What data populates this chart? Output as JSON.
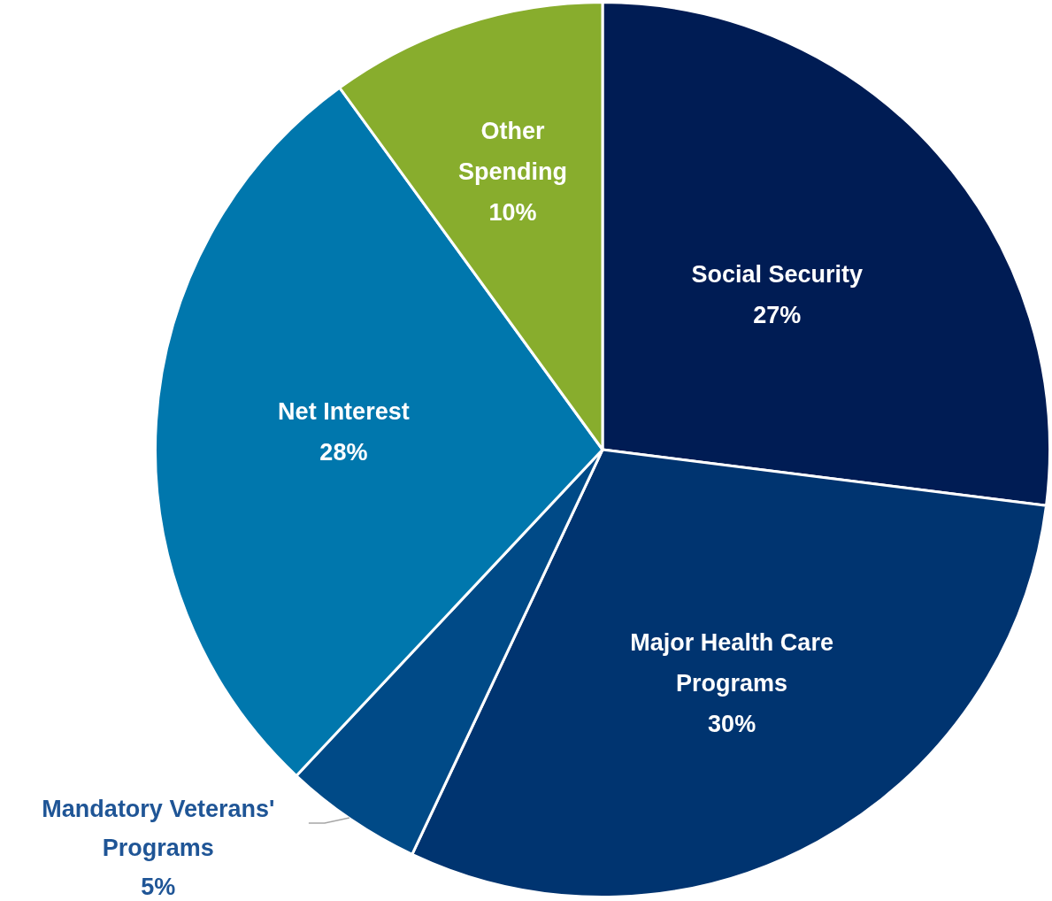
{
  "chart_data": {
    "type": "pie",
    "categories": [
      "Social Security",
      "Major Health Care Programs",
      "Mandatory Veterans' Programs",
      "Net Interest",
      "Other Spending"
    ],
    "values": [
      27,
      30,
      5,
      28,
      10
    ],
    "colors": [
      "#001c54",
      "#003470",
      "#004a87",
      "#0077ad",
      "#88ad2d"
    ],
    "value_labels": [
      "27%",
      "30%",
      "5%",
      "28%",
      "10%"
    ],
    "legend": false
  }
}
